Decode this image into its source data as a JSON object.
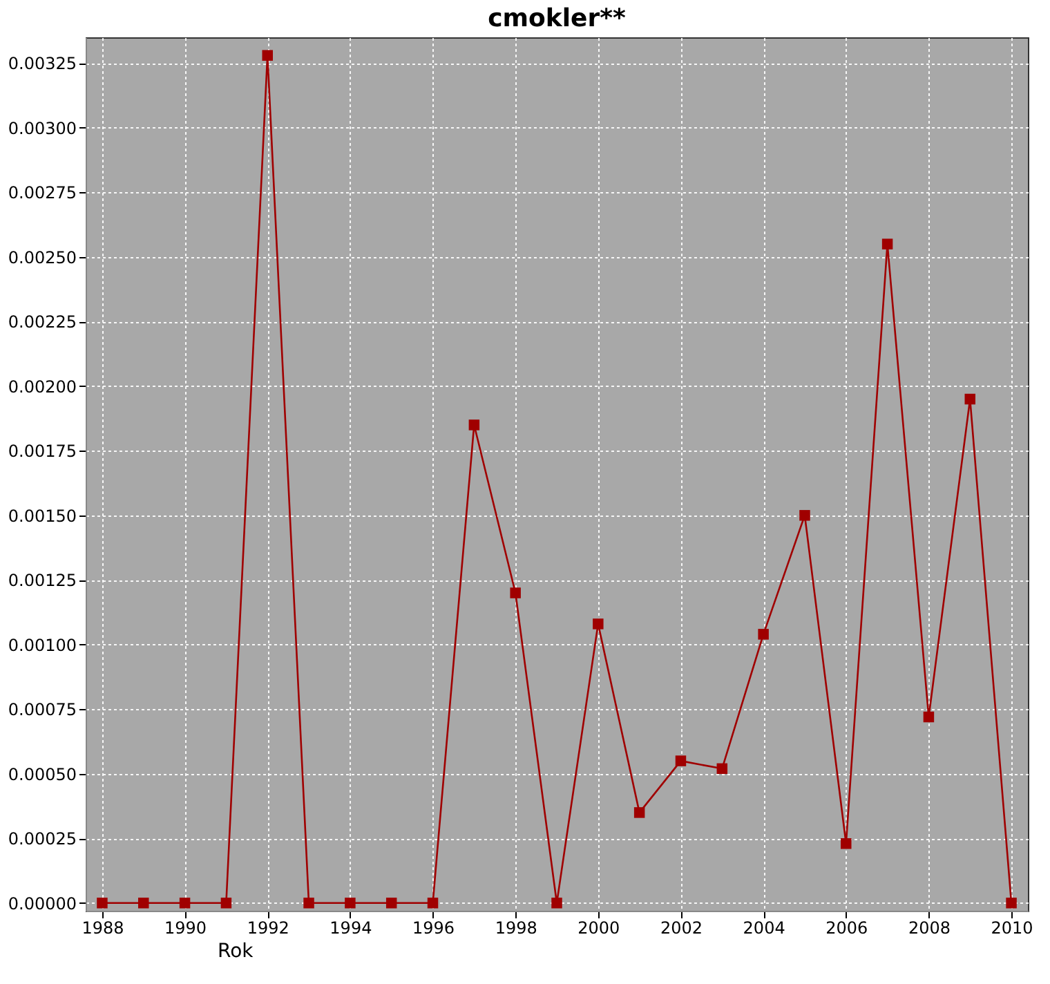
{
  "chart_data": {
    "type": "line",
    "title": "cmokler**",
    "xlabel": "Rok",
    "x": [
      1988,
      1989,
      1990,
      1991,
      1992,
      1993,
      1994,
      1995,
      1996,
      1997,
      1998,
      1999,
      2000,
      2001,
      2002,
      2003,
      2004,
      2005,
      2006,
      2007,
      2008,
      2009,
      2010
    ],
    "series": [
      {
        "color": "#a00000",
        "values": [
          0,
          0,
          0,
          0,
          0.00328,
          0,
          0,
          0,
          0,
          0.00185,
          0.0012,
          0,
          0.00108,
          0.00035,
          0.00055,
          0.00052,
          0.00104,
          0.0015,
          0.00023,
          0.00255,
          0.00072,
          0.00195,
          0
        ]
      }
    ],
    "xlim": [
      1987.6,
      2010.4
    ],
    "xticks": [
      1988,
      1990,
      1992,
      1994,
      1996,
      1998,
      2000,
      2002,
      2004,
      2006,
      2008,
      2010
    ],
    "ylim": [
      -3e-05,
      0.00335
    ],
    "yticks": [
      {
        "value": 0,
        "label": "0.00000"
      },
      {
        "value": 0.00025,
        "label": "0.00025"
      },
      {
        "value": 0.0005,
        "label": "0.00050"
      },
      {
        "value": 0.00075,
        "label": "0.00075"
      },
      {
        "value": 0.001,
        "label": "0.00100"
      },
      {
        "value": 0.00125,
        "label": "0.00125"
      },
      {
        "value": 0.0015,
        "label": "0.00150"
      },
      {
        "value": 0.00175,
        "label": "0.00175"
      },
      {
        "value": 0.002,
        "label": "0.00200"
      },
      {
        "value": 0.00225,
        "label": "0.00225"
      },
      {
        "value": 0.0025,
        "label": "0.00250"
      },
      {
        "value": 0.00275,
        "label": "0.00275"
      },
      {
        "value": 0.003,
        "label": "0.00300"
      },
      {
        "value": 0.00325,
        "label": "0.00325"
      }
    ],
    "grid": true,
    "marker": "square",
    "line_style": "solid"
  }
}
